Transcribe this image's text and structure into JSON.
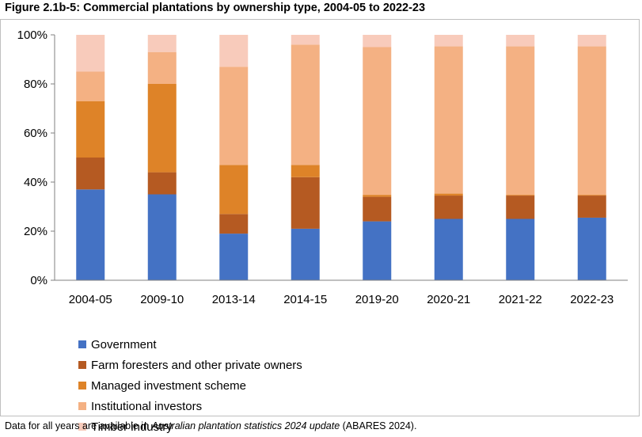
{
  "title": "Figure 2.1b-5: Commercial plantations by ownership type, 2004-05 to 2022-23",
  "footnote": {
    "prefix": "Data for all years are available in ",
    "italic": "Australian plantation statistics 2024 update",
    "suffix": " (ABARES 2024)."
  },
  "chart_data": {
    "type": "bar",
    "stacked": true,
    "title": "",
    "xlabel": "",
    "ylabel": "",
    "ylim": [
      0,
      100
    ],
    "yticks": [
      "0%",
      "20%",
      "40%",
      "60%",
      "80%",
      "100%"
    ],
    "yticks_values": [
      0,
      20,
      40,
      60,
      80,
      100
    ],
    "grid": false,
    "legend_position": "bottom-left",
    "categories": [
      "2004-05",
      "2009-10",
      "2013-14",
      "2014-15",
      "2019-20",
      "2020-21",
      "2021-22",
      "2022-23"
    ],
    "series": [
      {
        "name": "Government",
        "color": "#4472c4",
        "values": [
          37,
          35,
          19,
          21,
          24,
          25,
          25,
          25.5
        ]
      },
      {
        "name": "Farm foresters and other private owners",
        "color": "#b55a22",
        "values": [
          13,
          9,
          8,
          21,
          10,
          9.5,
          9.5,
          9
        ]
      },
      {
        "name": "Managed investment scheme",
        "color": "#de8328",
        "values": [
          23,
          36,
          20,
          5,
          0.8,
          0.8,
          0.3,
          0.3
        ]
      },
      {
        "name": "Institutional investors",
        "color": "#f4b183",
        "values": [
          12,
          13,
          40,
          49,
          60.2,
          60,
          60.5,
          60.5
        ]
      },
      {
        "name": "Timber industry",
        "color": "#f8cbbb",
        "values": [
          15,
          7,
          13,
          4,
          5,
          4.7,
          4.7,
          4.7
        ]
      }
    ]
  }
}
